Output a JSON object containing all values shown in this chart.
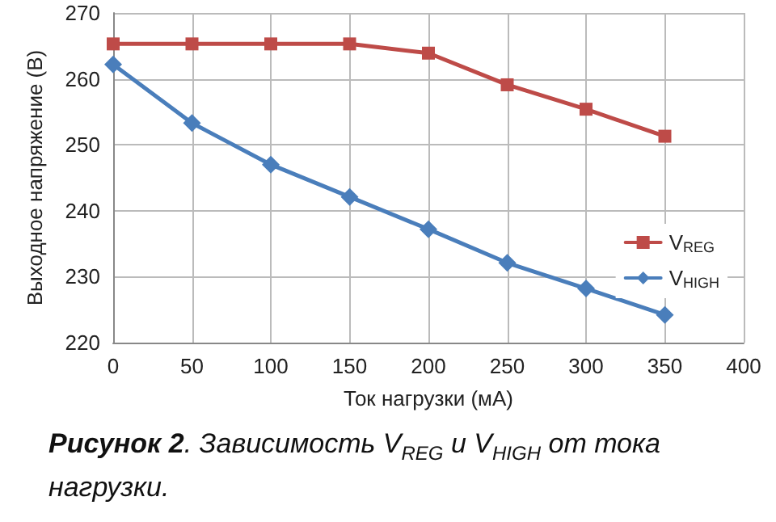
{
  "chart_data": {
    "type": "line",
    "xlabel": "Ток нагрузки (мА)",
    "ylabel": "Выходное напряжение (В)",
    "x": [
      0,
      50,
      100,
      150,
      200,
      250,
      300,
      350
    ],
    "series": [
      {
        "name": "V$_{REG}$",
        "color": "#be4b48",
        "marker": "square",
        "values": [
          265.3,
          265.3,
          265.3,
          265.3,
          263.9,
          259.1,
          255.4,
          251.3
        ]
      },
      {
        "name": "V$_{HIGH}$",
        "color": "#4a7ebb",
        "marker": "diamond",
        "values": [
          262.2,
          253.3,
          247.0,
          242.1,
          237.2,
          232.1,
          228.2,
          224.2
        ]
      }
    ],
    "xlim": [
      0,
      400
    ],
    "xticks": [
      0,
      50,
      100,
      150,
      200,
      250,
      300,
      350,
      400
    ],
    "ylim": [
      220,
      270
    ],
    "yticks": [
      220,
      230,
      240,
      250,
      260,
      270
    ],
    "grid": true,
    "legend": "right",
    "line_style": "solid",
    "annotations": [
      "Рисунок 2. Зависимость V$_{REG}$ и V$_{HIGH}$ от тока нагрузки."
    ]
  }
}
